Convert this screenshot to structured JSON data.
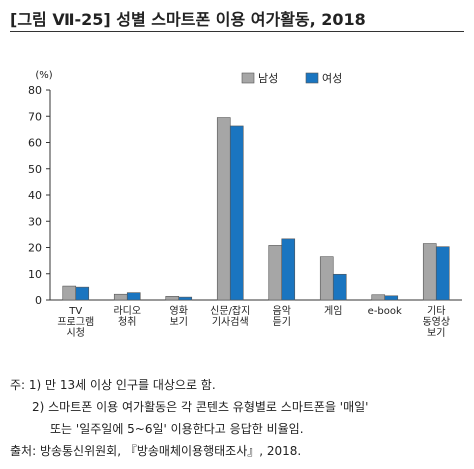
{
  "figure": {
    "title": "[그림 Ⅶ-25] 성별 스마트폰 이용 여가활동, 2018"
  },
  "chart_data": {
    "type": "bar",
    "ylabel": "(%)",
    "ylim": [
      0,
      80
    ],
    "yticks": [
      0,
      10,
      20,
      30,
      40,
      50,
      60,
      70,
      80
    ],
    "legend_position": "top-right",
    "categories": [
      [
        "TV",
        "프로그램",
        "시청"
      ],
      [
        "라디오",
        "청취"
      ],
      [
        "영화",
        "보기"
      ],
      [
        "신문/잡지",
        "기사검색"
      ],
      [
        "음악",
        "듣기"
      ],
      [
        "게임"
      ],
      [
        "e-book"
      ],
      [
        "기타",
        "동영상",
        "보기"
      ]
    ],
    "series": [
      {
        "name": "남성",
        "color": "#a6a6a6",
        "values": [
          5.3,
          2.2,
          1.4,
          69.5,
          20.8,
          16.5,
          2.0,
          21.5
        ]
      },
      {
        "name": "여성",
        "color": "#1a75c0",
        "values": [
          4.9,
          2.8,
          1.1,
          66.3,
          23.3,
          9.8,
          1.6,
          20.3
        ]
      }
    ]
  },
  "notes": {
    "line1": "주: 1) 만 13세 이상 인구를 대상으로 함.",
    "line2": "2) 스마트폰 이용 여가활동은 각 콘텐츠 유형별로 스마트폰을 '매일'",
    "line3": "또는 '일주일에 5~6일' 이용한다고 응답한 비율임.",
    "source": "출처: 방송통신위원회, 『방송매체이용행태조사』, 2018."
  }
}
